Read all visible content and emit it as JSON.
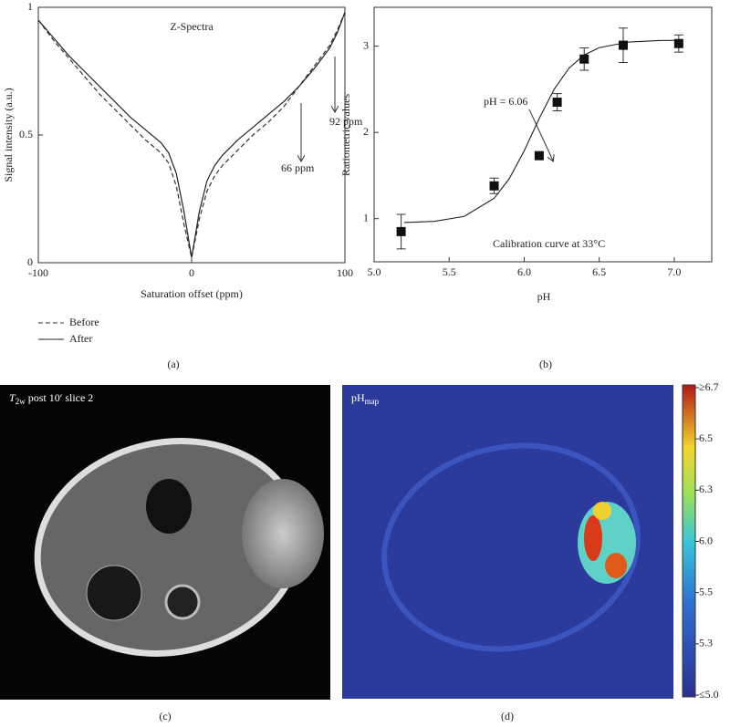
{
  "chart_data": [
    {
      "type": "line",
      "title": "Z-Spectra",
      "xlabel": "Saturation offset (ppm)",
      "ylabel": "Signal intensity (a.u.)",
      "x": [
        -100,
        -90,
        -80,
        -70,
        -60,
        -50,
        -40,
        -30,
        -20,
        -15,
        -10,
        -5,
        0,
        5,
        10,
        15,
        20,
        30,
        40,
        50,
        60,
        70,
        80,
        90,
        95,
        100
      ],
      "series": [
        {
          "name": "Before",
          "color": "#333333",
          "dash": true,
          "values": [
            0.95,
            0.87,
            0.8,
            0.73,
            0.66,
            0.6,
            0.54,
            0.48,
            0.43,
            0.39,
            0.3,
            0.15,
            0.02,
            0.17,
            0.28,
            0.34,
            0.38,
            0.44,
            0.5,
            0.55,
            0.61,
            0.69,
            0.77,
            0.85,
            0.91,
            0.98
          ]
        },
        {
          "name": "After",
          "color": "#222222",
          "dash": false,
          "values": [
            0.95,
            0.88,
            0.81,
            0.75,
            0.69,
            0.63,
            0.57,
            0.52,
            0.47,
            0.43,
            0.35,
            0.2,
            0.02,
            0.2,
            0.32,
            0.38,
            0.42,
            0.48,
            0.53,
            0.58,
            0.63,
            0.69,
            0.76,
            0.84,
            0.9,
            0.98
          ]
        }
      ],
      "xlim": [
        -100,
        100
      ],
      "xticks": [
        -100,
        0,
        100
      ],
      "ylim": [
        0,
        1
      ],
      "yticks": [
        0,
        0.5,
        1
      ],
      "annotations": [
        "92 ppm",
        "66 ppm"
      ],
      "panel": "(a)"
    },
    {
      "type": "scatter",
      "xlabel": "pH",
      "ylabel": "Ratiometric values",
      "points": {
        "x": [
          5.18,
          5.8,
          6.1,
          6.22,
          6.4,
          6.66,
          7.03
        ],
        "values": [
          0.85,
          1.38,
          1.73,
          2.35,
          2.85,
          3.01,
          3.03
        ],
        "errors": [
          0.2,
          0.09,
          0.03,
          0.1,
          0.13,
          0.2,
          0.1
        ],
        "color": "#111111"
      },
      "fit": {
        "x": [
          5.2,
          5.4,
          5.6,
          5.8,
          5.9,
          6.0,
          6.1,
          6.2,
          6.3,
          6.4,
          6.5,
          6.7,
          6.9,
          7.05
        ],
        "values": [
          0.955,
          0.969,
          1.026,
          1.236,
          1.462,
          1.786,
          2.161,
          2.5,
          2.747,
          2.898,
          2.982,
          3.048,
          3.065,
          3.068
        ]
      },
      "xlim": [
        5.0,
        7.25
      ],
      "xticks": [
        {
          "value": 5,
          "label": "5.0"
        },
        5.5,
        {
          "value": 6,
          "label": "6.0"
        },
        6.5,
        {
          "value": 7,
          "label": "7.0"
        }
      ],
      "ylim": [
        0.5,
        3.45
      ],
      "yticks": [
        1,
        2,
        3
      ],
      "annotations": [
        "pH = 6.06",
        "Calibration curve at 33°C"
      ],
      "panel": "(b)"
    }
  ],
  "images": [
    {
      "label": [
        "T",
        "2w",
        " post 10′ slice 2"
      ],
      "panel": "(c)"
    },
    {
      "label": [
        "pH",
        "map"
      ],
      "colorbar": [
        "≥6.7",
        "6.5",
        "6.3",
        "6.0",
        "5.5",
        "5.3",
        "≤5.0"
      ],
      "panel": "(d)"
    }
  ]
}
